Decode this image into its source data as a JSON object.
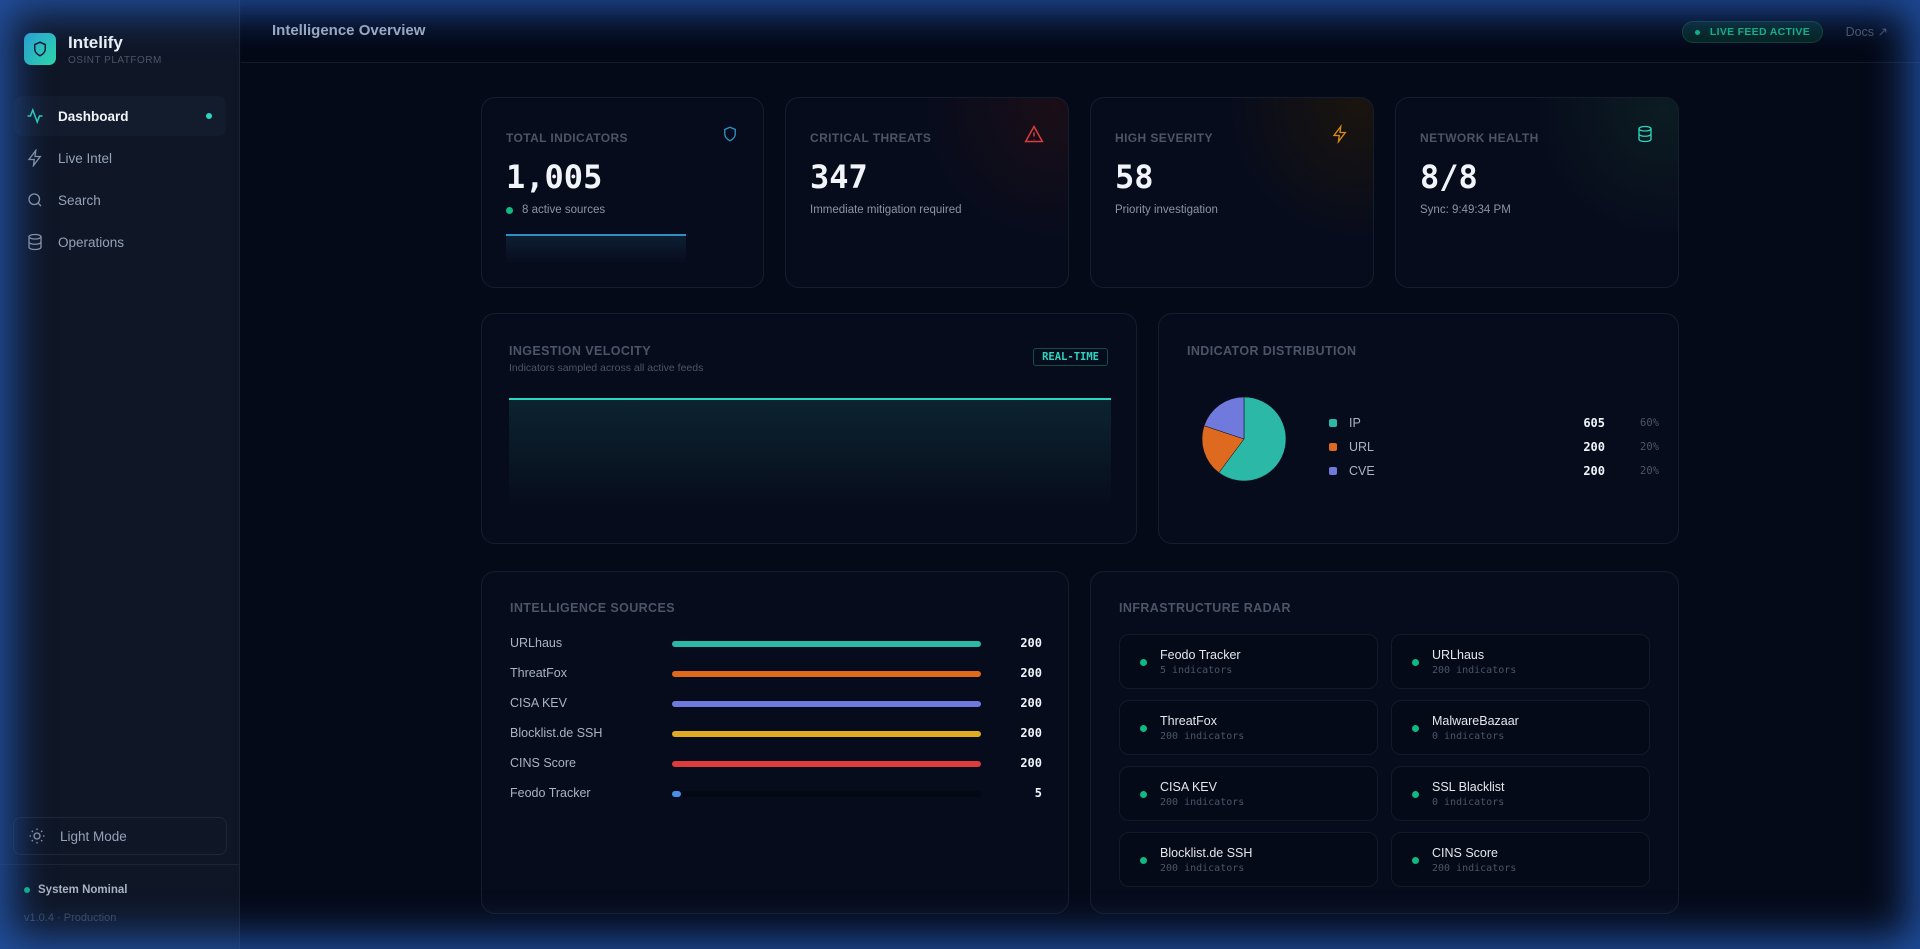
{
  "app": {
    "name": "Intelify",
    "subtitle": "OSINT PLATFORM"
  },
  "sidebar": {
    "items": [
      {
        "label": "Dashboard",
        "icon": "activity-icon",
        "active": true
      },
      {
        "label": "Live Intel",
        "icon": "zap-icon"
      },
      {
        "label": "Search",
        "icon": "search-icon"
      },
      {
        "label": "Operations",
        "icon": "database-icon"
      }
    ],
    "theme_toggle": "Light Mode",
    "status": "System Nominal",
    "version": "v1.0.4 · Production"
  },
  "header": {
    "title": "Intelligence Overview",
    "live_badge": "LIVE FEED ACTIVE",
    "docs": "Docs ↗"
  },
  "kpis": [
    {
      "label": "TOTAL INDICATORS",
      "value": "1,005",
      "sub": "8 active sources",
      "icon": "shield-icon",
      "color": "#2f8fc4"
    },
    {
      "label": "CRITICAL THREATS",
      "value": "347",
      "sub": "Immediate mitigation required",
      "icon": "alert-triangle-icon",
      "color": "#dc3c3c"
    },
    {
      "label": "HIGH SEVERITY",
      "value": "58",
      "sub": "Priority investigation",
      "icon": "zap-icon",
      "color": "#d98c12"
    },
    {
      "label": "NETWORK HEALTH",
      "value": "8/8",
      "sub": "Sync: 9:49:34 PM",
      "icon": "database-icon",
      "color": "#2dd4bf"
    }
  ],
  "velocity": {
    "title": "INGESTION VELOCITY",
    "subtitle": "Indicators sampled across all active feeds",
    "badge": "REAL-TIME"
  },
  "distribution": {
    "title": "INDICATOR DISTRIBUTION"
  },
  "chart_data": {
    "type": "pie",
    "categories": [
      "IP",
      "URL",
      "CVE"
    ],
    "values": [
      605,
      200,
      200
    ],
    "percents": [
      "60%",
      "20%",
      "20%"
    ],
    "colors": [
      "#2bb8a6",
      "#dd6a1e",
      "#7079dc"
    ]
  },
  "sources": {
    "title": "INTELLIGENCE SOURCES",
    "max": 200,
    "items": [
      {
        "name": "URLhaus",
        "value": 200,
        "color": "#2bb8a6"
      },
      {
        "name": "ThreatFox",
        "value": 200,
        "color": "#e06a1a"
      },
      {
        "name": "CISA KEV",
        "value": 200,
        "color": "#7079dc"
      },
      {
        "name": "Blocklist.de SSH",
        "value": 200,
        "color": "#e0aa22"
      },
      {
        "name": "CINS Score",
        "value": 200,
        "color": "#dc3c3c"
      },
      {
        "name": "Feodo Tracker",
        "value": 5,
        "color": "#4a8ee8"
      }
    ]
  },
  "radar": {
    "title": "INFRASTRUCTURE RADAR",
    "items": [
      {
        "name": "Feodo Tracker",
        "count": "5 indicators"
      },
      {
        "name": "URLhaus",
        "count": "200 indicators"
      },
      {
        "name": "ThreatFox",
        "count": "200 indicators"
      },
      {
        "name": "MalwareBazaar",
        "count": "0 indicators"
      },
      {
        "name": "CISA KEV",
        "count": "200 indicators"
      },
      {
        "name": "SSL Blacklist",
        "count": "0 indicators"
      },
      {
        "name": "Blocklist.de SSH",
        "count": "200 indicators"
      },
      {
        "name": "CINS Score",
        "count": "200 indicators"
      }
    ]
  }
}
